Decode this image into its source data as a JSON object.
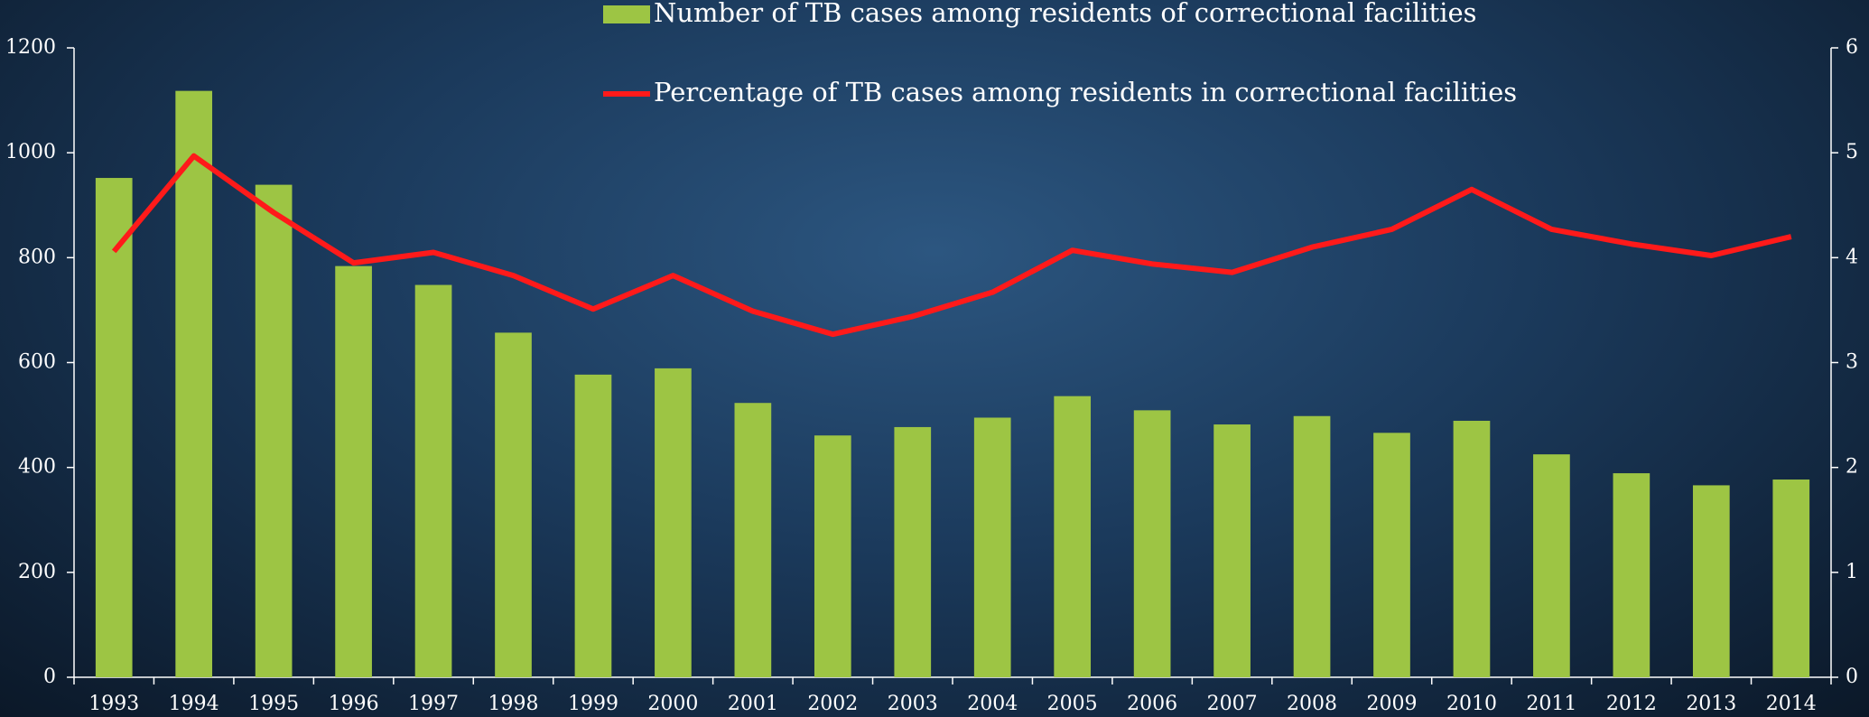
{
  "chart_data": {
    "type": "bar-line",
    "categories": [
      "1993",
      "1994",
      "1995",
      "1996",
      "1997",
      "1998",
      "1999",
      "2000",
      "2001",
      "2002",
      "2003",
      "2004",
      "2005",
      "2006",
      "2007",
      "2008",
      "2009",
      "2010",
      "2011",
      "2012",
      "2013",
      "2014"
    ],
    "series": [
      {
        "name": "Number of TB cases among residents of correctional facilities",
        "type": "bar",
        "color": "#9dc544",
        "values": [
          952,
          1118,
          939,
          784,
          748,
          657,
          577,
          589,
          523,
          461,
          477,
          495,
          536,
          509,
          482,
          498,
          466,
          489,
          425,
          389,
          366,
          377
        ]
      },
      {
        "name": "Percentage of TB cases among residents in correctional facilities",
        "type": "line",
        "axis": "y2",
        "color": "#ff1a1a",
        "values": [
          4.06,
          4.97,
          4.43,
          3.95,
          4.05,
          3.83,
          3.51,
          3.83,
          3.49,
          3.27,
          3.44,
          3.67,
          4.07,
          3.94,
          3.86,
          4.1,
          4.27,
          4.65,
          4.27,
          4.13,
          4.02,
          4.2
        ]
      }
    ],
    "ylim": [
      0,
      1200
    ],
    "yticks": [
      0,
      200,
      400,
      600,
      800,
      1000,
      1200
    ],
    "y2lim": [
      0,
      6
    ],
    "y2ticks": [
      0,
      1,
      2,
      3,
      4,
      5,
      6
    ]
  }
}
